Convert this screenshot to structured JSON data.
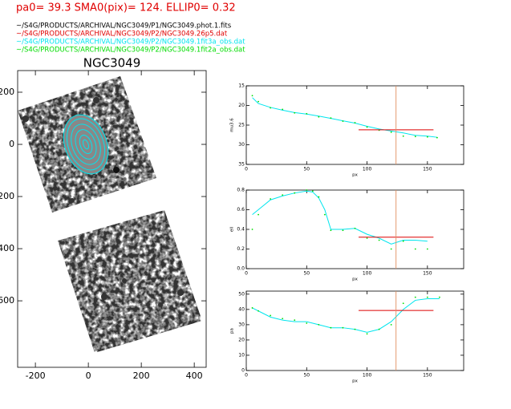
{
  "header": {
    "title": "pa0= 39.3  SMA0(pix)= 124.  ELLIP0= 0.32",
    "files": [
      {
        "text": "~/S4G/PRODUCTS/ARCHIVAL/NGC3049/P1/NGC3049.phot.1.fits",
        "color": "#000000"
      },
      {
        "text": "~/S4G/PRODUCTS/ARCHIVAL/NGC3049/P2/NGC3049.26p5.dat",
        "color": "#e00000"
      },
      {
        "text": "~/S4G/PRODUCTS/ARCHIVAL/NGC3049/P2/NGC3049.1fit3a_obs.dat",
        "color": "#00e5ee"
      },
      {
        "text": "~/S4G/PRODUCTS/ARCHIVAL/NGC3049/P2/NGC3049.1fit2a_obs.dat",
        "color": "#00dd00"
      }
    ]
  },
  "chart_data": [
    {
      "type": "image",
      "title": "NGC3049",
      "xlim": [
        -267,
        445
      ],
      "ylim": [
        855,
        -283
      ],
      "xticks": [
        -200,
        0,
        200,
        400
      ],
      "yticks": [
        -200,
        0,
        200,
        400,
        600
      ]
    },
    {
      "type": "line",
      "ylabel": "mu3.6",
      "xlabel": "px",
      "xlim": [
        0,
        180
      ],
      "ylim": [
        35,
        15
      ],
      "xticks": [
        0,
        50,
        100,
        150
      ],
      "yticks": [
        15,
        20,
        25,
        30,
        35
      ],
      "x": [
        5,
        10,
        20,
        30,
        40,
        50,
        60,
        70,
        80,
        90,
        100,
        110,
        120,
        130,
        140,
        150,
        158
      ],
      "series": [
        {
          "color": "#00e5ee",
          "style": "line",
          "values": [
            18,
            19.5,
            20.5,
            21.2,
            21.8,
            22.2,
            22.7,
            23.3,
            23.9,
            24.5,
            25.3,
            26,
            26.5,
            27,
            27.6,
            27.8,
            28.1
          ]
        },
        {
          "color": "#00dd00",
          "style": "dots",
          "values": [
            17.5,
            19,
            20.6,
            21,
            21.9,
            22.1,
            22.9,
            23.2,
            24,
            24.4,
            25.5,
            26.3,
            26.8,
            27.8,
            27.9,
            28,
            28.2
          ]
        },
        {
          "color": "#dd0000",
          "style": "line",
          "x": [
            93,
            155
          ],
          "values": [
            26.2,
            26.2
          ]
        }
      ],
      "vline": {
        "value": 124,
        "color": "#e09060"
      }
    },
    {
      "type": "line",
      "ylabel": "ell",
      "xlabel": "px",
      "xlim": [
        0,
        180
      ],
      "ylim": [
        0,
        0.8
      ],
      "xticks": [
        0,
        50,
        100,
        150
      ],
      "yticks": [
        {
          "value": 0,
          "label": "0.0"
        },
        0.2,
        0.4,
        0.6,
        0.8
      ],
      "x": [
        5,
        10,
        20,
        30,
        40,
        50,
        55,
        60,
        65,
        70,
        80,
        90,
        100,
        110,
        120,
        130,
        140,
        150
      ],
      "series": [
        {
          "color": "#00e5ee",
          "style": "line",
          "values": [
            0.55,
            0.6,
            0.7,
            0.74,
            0.77,
            0.79,
            0.78,
            0.72,
            0.6,
            0.4,
            0.4,
            0.41,
            0.35,
            0.31,
            0.25,
            0.29,
            0.29,
            0.28
          ]
        },
        {
          "color": "#00dd00",
          "style": "dots",
          "values": [
            0.4,
            0.55,
            0.71,
            0.75,
            0.77,
            0.8,
            0.79,
            0.73,
            0.55,
            0.39,
            0.39,
            0.41,
            0.31,
            0.29,
            0.2,
            0.28,
            0.2,
            0.2
          ]
        },
        {
          "color": "#dd0000",
          "style": "line",
          "x": [
            93,
            155
          ],
          "values": [
            0.32,
            0.32
          ]
        }
      ],
      "vline": {
        "value": 124,
        "color": "#e09060"
      }
    },
    {
      "type": "line",
      "ylabel": "pa",
      "xlabel": "px",
      "xlim": [
        0,
        180
      ],
      "ylim": [
        0,
        52
      ],
      "xticks": [
        0,
        50,
        100,
        150
      ],
      "yticks": [
        0,
        10,
        20,
        30,
        40,
        50
      ],
      "x": [
        5,
        10,
        20,
        30,
        40,
        50,
        60,
        70,
        80,
        90,
        100,
        110,
        120,
        130,
        140,
        150,
        160
      ],
      "series": [
        {
          "color": "#00e5ee",
          "style": "line",
          "values": [
            41,
            39,
            35,
            33,
            32,
            32,
            30,
            28,
            28,
            27,
            25,
            27,
            32,
            40,
            46,
            47,
            47
          ]
        },
        {
          "color": "#00dd00",
          "style": "dots",
          "values": [
            41,
            39,
            36,
            34,
            33,
            31,
            30,
            28,
            28,
            27,
            24,
            27,
            30,
            44,
            48,
            48,
            48
          ]
        },
        {
          "color": "#dd0000",
          "style": "line",
          "x": [
            93,
            155
          ],
          "values": [
            39.3,
            39.3
          ]
        }
      ],
      "vline": {
        "value": 124,
        "color": "#e09060"
      }
    }
  ]
}
